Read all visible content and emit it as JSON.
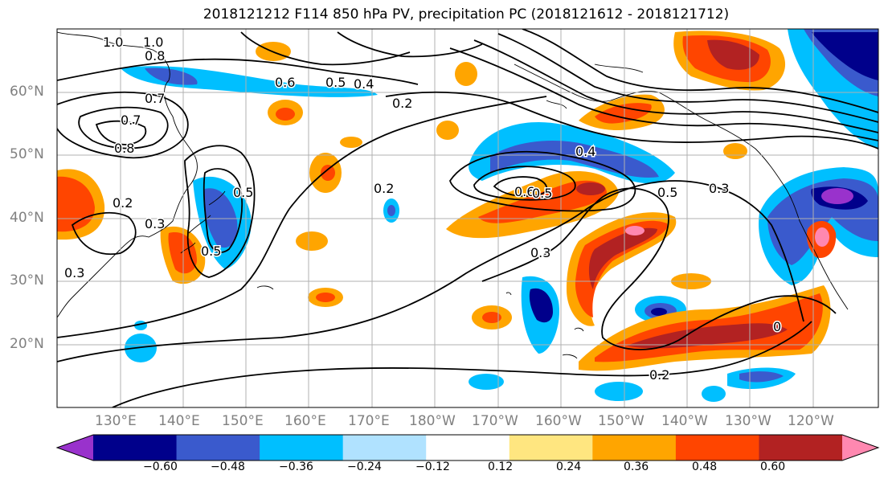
{
  "title": "2018121212 F114 850 hPa PV, precipitation PC (2018121612 - 2018121712)",
  "latitude_labels": [
    "60°N",
    "50°N",
    "40°N",
    "30°N",
    "20°N"
  ],
  "longitude_labels": [
    "130°E",
    "140°E",
    "150°E",
    "160°E",
    "170°E",
    "180°W",
    "170°W",
    "160°W",
    "150°W",
    "140°W",
    "130°W",
    "120°W"
  ],
  "colorbar": {
    "tick_labels": [
      "−0.60",
      "−0.48",
      "−0.36",
      "−0.24",
      "−0.12",
      "0.12",
      "0.24",
      "0.36",
      "0.48",
      "0.60"
    ],
    "colors": [
      "#9932cc",
      "#00008b",
      "#3a5acd",
      "#00bfff",
      "#b0e2ff",
      "#ffffff",
      "#ffe680",
      "#ffa500",
      "#ff4500",
      "#b22222",
      "#ff88b0"
    ]
  },
  "contour_labels": [
    "1.0",
    "1.0",
    "0.8",
    "0.6",
    "0.5",
    "0.4",
    "0.2",
    "0.7",
    "0.7",
    "0.8",
    "0.2",
    "0.3",
    "0.5",
    "0.3",
    "0.5",
    "0.2",
    "0.6",
    "0.5",
    "0.4",
    "0.5",
    "0.3",
    "0.3",
    "0.2",
    "0"
  ],
  "colors": {
    "land": "#000000",
    "contour": "#000000",
    "grid": "#b0b0b0",
    "axis_label": "#808080"
  }
}
